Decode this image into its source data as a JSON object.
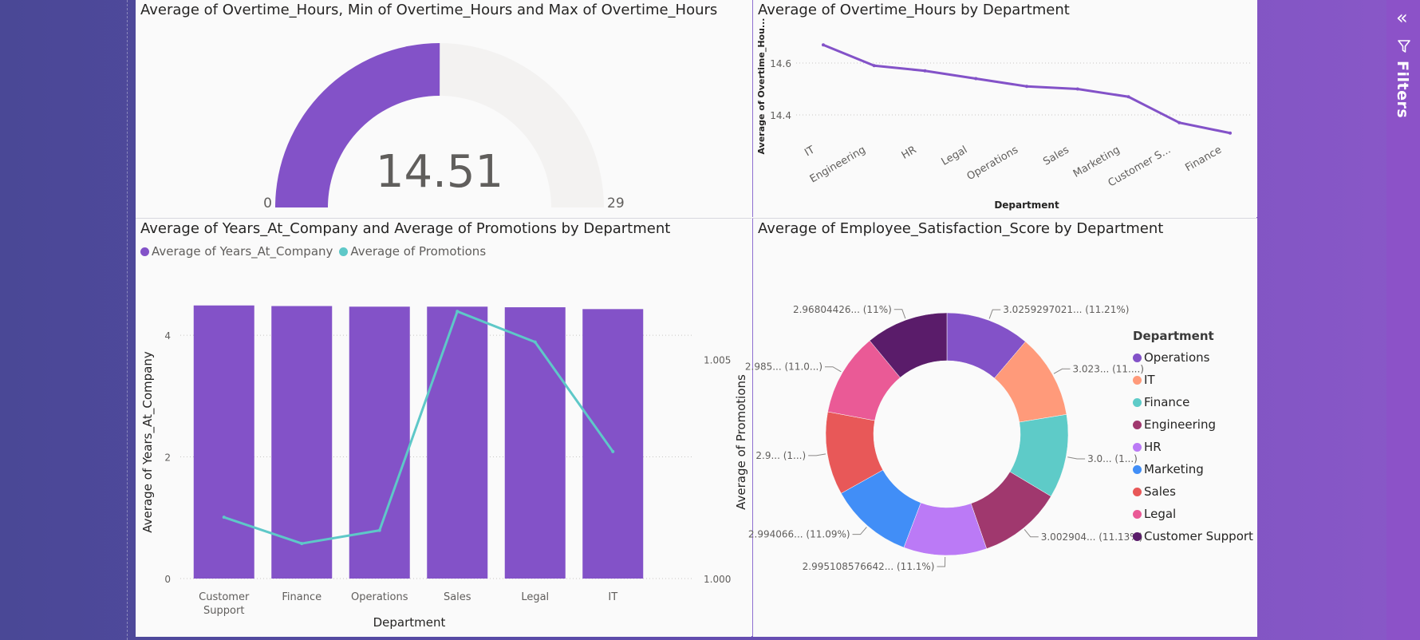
{
  "filters_pane": {
    "label": "Filters",
    "collapse_icon": "double-chevron-left-icon",
    "filter_icon": "funnel-icon"
  },
  "chart_data": [
    {
      "type": "gauge",
      "title": "Average of Overtime_Hours, Min of Overtime_Hours and Max of Overtime_Hours",
      "value": 14.51,
      "value_label": "14.51",
      "min": 0,
      "min_label": "0",
      "max": 29,
      "max_label": "29",
      "fill_color": "#8352c8",
      "track_color": "#f3f2f1"
    },
    {
      "type": "line",
      "title": "Average of Overtime_Hours by Department",
      "xlabel": "Department",
      "ylabel": "Average of Overtime_Hou...",
      "categories": [
        "IT",
        "Engineering",
        "HR",
        "Legal",
        "Operations",
        "Sales",
        "Marketing",
        "Customer S...",
        "Finance"
      ],
      "values": [
        14.67,
        14.59,
        14.57,
        14.54,
        14.51,
        14.5,
        14.47,
        14.37,
        14.33
      ],
      "ylim": [
        14.32,
        14.72
      ],
      "yticks": [
        14.4,
        14.6
      ],
      "ytick_labels": [
        "14.4",
        "14.6"
      ],
      "grid": true,
      "color": "#8352c8"
    },
    {
      "type": "bar+line",
      "title": "Average of Years_At_Company and Average of Promotions by Department",
      "xlabel": "Department",
      "ylabel": "Average of Years_At_Company",
      "y2label": "Average of Promotions",
      "categories": [
        "Customer Support",
        "Finance",
        "Operations",
        "Sales",
        "Legal",
        "IT"
      ],
      "series": [
        {
          "name": "Average of Years_At_Company",
          "type": "bar",
          "axis": "left",
          "color": "#8352c8",
          "values": [
            4.49,
            4.48,
            4.47,
            4.47,
            4.46,
            4.43
          ]
        },
        {
          "name": "Average of Promotions",
          "type": "line",
          "axis": "right",
          "color": "#5ec8c8",
          "values": [
            1.0014,
            1.0008,
            1.0011,
            1.0061,
            1.0054,
            1.0029
          ]
        }
      ],
      "ylim": [
        0,
        4.5
      ],
      "yticks": [
        0,
        2,
        4
      ],
      "ytick_labels": [
        "0",
        "2",
        "4"
      ],
      "y2lim": [
        1.0,
        1.00625
      ],
      "y2ticks": [
        1.0,
        1.005
      ],
      "y2tick_labels": [
        "1.000",
        "1.005"
      ],
      "legend": "top-left",
      "grid": true
    },
    {
      "type": "pie",
      "donut": true,
      "title": "Average of Employee_Satisfaction_Score by Department",
      "legend_title": "Department",
      "legend": "right",
      "slices": [
        {
          "name": "Operations",
          "value": 3.0259,
          "label": "3.0259297021... (11.21%)",
          "color": "#8352c8"
        },
        {
          "name": "IT",
          "value": 3.023,
          "label": "3.023... (11....)",
          "color": "#ff9a7a"
        },
        {
          "name": "Finance",
          "value": 3.015,
          "label": "3.0... (1...)",
          "color": "#5ecbc8"
        },
        {
          "name": "Engineering",
          "value": 3.0029,
          "label": "3.002904... (11.13%)",
          "color": "#a0386e"
        },
        {
          "name": "HR",
          "value": 2.9951,
          "label": "2.995108576642... (11.1%)",
          "color": "#bb7af6"
        },
        {
          "name": "Marketing",
          "value": 2.9941,
          "label": "2.994066... (11.09%)",
          "color": "#418ef7"
        },
        {
          "name": "Sales",
          "value": 2.99,
          "label": "2.9... (1...)",
          "color": "#e85858"
        },
        {
          "name": "Legal",
          "value": 2.985,
          "label": "2.985... (11.0...)",
          "color": "#ea5a96"
        },
        {
          "name": "Customer Support",
          "value": 2.968,
          "label": "2.96804426... (11%)",
          "color": "#5a1c6a"
        }
      ]
    }
  ]
}
